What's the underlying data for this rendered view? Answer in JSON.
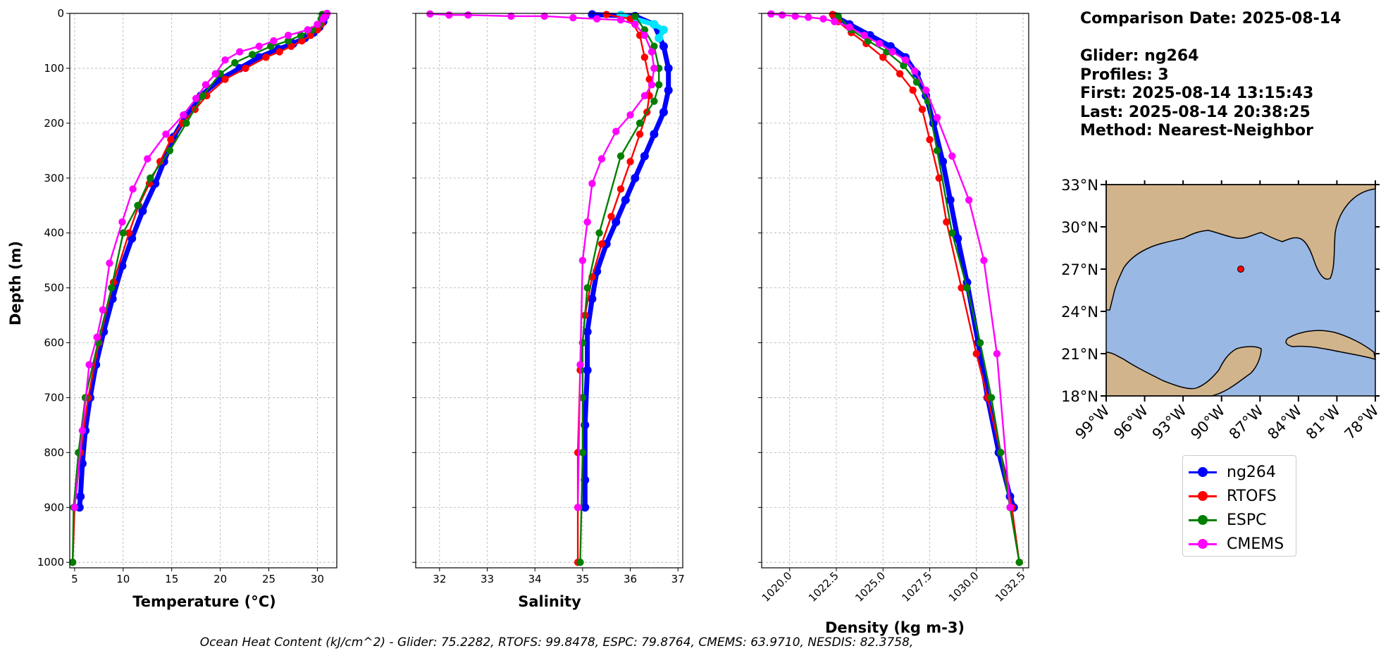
{
  "info": {
    "comparison_date": "Comparison Date: 2025-08-14",
    "glider": "Glider: ng264",
    "profiles": "Profiles: 3",
    "first": "First: 2025-08-14 13:15:43",
    "last": "Last: 2025-08-14 20:38:25",
    "method": "Method: Nearest-Neighbor"
  },
  "footer": "Ocean Heat Content (kJ/cm^2) - Glider: 75.2282,  RTOFS: 99.8478,  ESPC: 79.8764,  CMEMS: 63.9710,  NESDIS: 82.3758,",
  "colors": {
    "ng264": "#0000ff",
    "ng264_alt": "#00e5ff",
    "RTOFS": "#ff0000",
    "ESPC": "#007f00",
    "CMEMS": "#ff00ff",
    "land": "#d2b48c",
    "ocean": "#9ab8e4",
    "grid": "#b0b0b0"
  },
  "legend": [
    {
      "name": "ng264",
      "color": "#0000ff"
    },
    {
      "name": "RTOFS",
      "color": "#ff0000"
    },
    {
      "name": "ESPC",
      "color": "#007f00"
    },
    {
      "name": "CMEMS",
      "color": "#ff00ff"
    }
  ],
  "chart_data": [
    {
      "type": "line",
      "xlabel": "Temperature (°C)",
      "ylabel": "Depth (m)",
      "xlim": [
        4.5,
        32
      ],
      "ylim": [
        1010,
        0
      ],
      "xticks": [
        5,
        10,
        15,
        20,
        25,
        30
      ],
      "yticks": [
        0,
        100,
        200,
        300,
        400,
        500,
        600,
        700,
        800,
        900,
        1000
      ],
      "grid": true,
      "series": [
        {
          "name": "ng264",
          "x": [
            30.8,
            30.6,
            30.2,
            29.6,
            28.7,
            27.5,
            26.0,
            24.0,
            22.0,
            20.0,
            18.0,
            16.5,
            15.2,
            14.2,
            13.3,
            12.0,
            10.9,
            9.9,
            8.9,
            8.0,
            7.2,
            6.6,
            6.1,
            5.8,
            5.6,
            5.5
          ],
          "y": [
            5,
            15,
            25,
            35,
            45,
            55,
            65,
            80,
            100,
            120,
            150,
            185,
            225,
            270,
            310,
            360,
            410,
            460,
            520,
            580,
            640,
            700,
            760,
            820,
            880,
            900
          ]
        },
        {
          "name": "RTOFS",
          "x": [
            30.7,
            30.6,
            30.4,
            30.0,
            29.3,
            28.4,
            27.3,
            26.1,
            24.7,
            22.6,
            20.5,
            18.6,
            17.4,
            16.1,
            14.9,
            13.8,
            12.7,
            11.6,
            10.6,
            9.0,
            7.5,
            6.4,
            5.6,
            5.0,
            4.8
          ],
          "y": [
            2,
            10,
            20,
            30,
            40,
            50,
            60,
            70,
            80,
            100,
            120,
            150,
            175,
            200,
            230,
            270,
            310,
            350,
            400,
            490,
            600,
            700,
            800,
            900,
            1000
          ]
        },
        {
          "name": "ESPC",
          "x": [
            30.5,
            30.4,
            30.2,
            29.5,
            28.3,
            27.0,
            25.2,
            23.3,
            21.5,
            20.0,
            18.2,
            16.5,
            14.8,
            12.8,
            11.5,
            10.0,
            8.8,
            7.4,
            6.1,
            5.4,
            4.9,
            4.8
          ],
          "y": [
            2,
            10,
            20,
            30,
            40,
            50,
            60,
            75,
            90,
            110,
            150,
            200,
            250,
            300,
            350,
            400,
            500,
            600,
            700,
            800,
            900,
            1000
          ]
        },
        {
          "name": "CMEMS",
          "x": [
            31.0,
            30.8,
            30.6,
            30.0,
            29.0,
            27.0,
            25.5,
            24.0,
            22.0,
            20.5,
            19.5,
            18.5,
            17.5,
            16.2,
            14.4,
            12.5,
            11.0,
            9.9,
            8.6,
            7.9,
            7.3,
            6.5,
            5.8,
            5.0
          ],
          "y": [
            0,
            5,
            10,
            20,
            30,
            40,
            50,
            60,
            70,
            85,
            110,
            130,
            155,
            185,
            220,
            265,
            320,
            380,
            455,
            540,
            590,
            640,
            760,
            900
          ]
        }
      ]
    },
    {
      "type": "line",
      "xlabel": "Salinity",
      "xlim": [
        31.5,
        37.1
      ],
      "ylim": [
        1010,
        0
      ],
      "xticks": [
        32,
        33,
        34,
        35,
        36,
        37
      ],
      "grid": true,
      "series": [
        {
          "name": "ng264",
          "x": [
            35.2,
            36.1,
            36.5,
            36.7,
            36.8,
            36.8,
            36.7,
            36.5,
            36.3,
            36.1,
            35.9,
            35.7,
            35.5,
            35.3,
            35.2,
            35.1,
            35.1,
            35.05,
            35.05,
            35.05
          ],
          "y": [
            2,
            5,
            20,
            60,
            100,
            140,
            180,
            220,
            260,
            300,
            340,
            380,
            420,
            470,
            520,
            580,
            650,
            750,
            850,
            900
          ]
        },
        {
          "name": "ng264_alt",
          "x": [
            35.8,
            36.5,
            36.7,
            36.6
          ],
          "y": [
            3,
            20,
            30,
            45
          ]
        },
        {
          "name": "RTOFS",
          "x": [
            35.5,
            36.0,
            36.2,
            36.3,
            36.4,
            36.4,
            36.35,
            36.2,
            36.0,
            35.8,
            35.6,
            35.4,
            35.2,
            35.05,
            34.95,
            34.9,
            34.9,
            34.9
          ],
          "y": [
            2,
            10,
            40,
            80,
            120,
            150,
            180,
            220,
            270,
            320,
            370,
            420,
            480,
            550,
            650,
            800,
            900,
            1000
          ]
        },
        {
          "name": "ESPC",
          "x": [
            36.1,
            36.3,
            36.5,
            36.6,
            36.6,
            36.5,
            36.2,
            35.8,
            35.35,
            35.1,
            35.0,
            35.0,
            35.0,
            34.95
          ],
          "y": [
            5,
            30,
            60,
            100,
            130,
            160,
            200,
            260,
            400,
            500,
            600,
            700,
            800,
            1000
          ]
        },
        {
          "name": "CMEMS",
          "x": [
            31.8,
            32.2,
            32.6,
            33.5,
            34.2,
            34.8,
            35.3,
            35.8,
            36.1,
            36.3,
            36.45,
            36.5,
            36.45,
            36.3,
            36.0,
            35.7,
            35.4,
            35.2,
            35.1,
            35.0,
            34.95,
            34.9
          ],
          "y": [
            1,
            3,
            3,
            5,
            5,
            8,
            10,
            12,
            20,
            40,
            70,
            100,
            130,
            150,
            185,
            215,
            265,
            310,
            380,
            450,
            640,
            900
          ]
        }
      ]
    },
    {
      "type": "line",
      "xlabel": "Density (kg m-3)",
      "xlim": [
        1018.5,
        1032.8
      ],
      "ylim": [
        1010,
        0
      ],
      "xticks": [
        1020.0,
        1022.5,
        1025.0,
        1027.5,
        1030.0,
        1032.5
      ],
      "grid": true,
      "series": [
        {
          "name": "ng264",
          "x": [
            1022.4,
            1023.2,
            1024.3,
            1025.4,
            1026.2,
            1026.8,
            1027.3,
            1027.7,
            1028.2,
            1028.6,
            1029.0,
            1029.5,
            1030.1,
            1030.6,
            1031.2,
            1031.8,
            1032.0
          ],
          "y": [
            5,
            20,
            40,
            60,
            80,
            110,
            150,
            200,
            270,
            340,
            410,
            490,
            600,
            700,
            800,
            880,
            900
          ]
        },
        {
          "name": "RTOFS",
          "x": [
            1022.3,
            1022.6,
            1023.3,
            1024.1,
            1025.0,
            1025.9,
            1026.6,
            1027.1,
            1027.5,
            1028.0,
            1028.4,
            1029.2,
            1030.0,
            1030.6,
            1031.3,
            1031.9,
            1032.3
          ],
          "y": [
            2,
            15,
            35,
            55,
            80,
            110,
            140,
            175,
            230,
            300,
            380,
            500,
            620,
            700,
            800,
            900,
            1000
          ]
        },
        {
          "name": "ESPC",
          "x": [
            1022.6,
            1023.3,
            1024.2,
            1025.2,
            1026.1,
            1026.8,
            1027.4,
            1027.9,
            1028.7,
            1029.5,
            1030.2,
            1030.8,
            1031.3,
            1031.8,
            1032.3
          ],
          "y": [
            5,
            30,
            50,
            70,
            95,
            125,
            160,
            250,
            400,
            500,
            600,
            700,
            800,
            900,
            1000
          ]
        },
        {
          "name": "CMEMS",
          "x": [
            1019.0,
            1019.6,
            1020.3,
            1021.0,
            1021.8,
            1022.4,
            1023.2,
            1024.0,
            1024.8,
            1025.5,
            1026.2,
            1026.7,
            1027.3,
            1027.9,
            1028.7,
            1029.6,
            1030.4,
            1031.1,
            1031.8
          ],
          "y": [
            1,
            3,
            5,
            7,
            10,
            15,
            25,
            40,
            55,
            70,
            85,
            105,
            140,
            190,
            260,
            340,
            450,
            620,
            900
          ]
        }
      ]
    },
    {
      "type": "map",
      "lon_range": [
        -99,
        -78
      ],
      "lat_range": [
        18,
        33
      ],
      "lon_ticks": [
        "99°W",
        "96°W",
        "93°W",
        "90°W",
        "87°W",
        "84°W",
        "81°W",
        "78°W"
      ],
      "lat_ticks": [
        "33°N",
        "30°N",
        "27°N",
        "24°N",
        "21°N",
        "18°N"
      ],
      "marker": {
        "lon": -88.5,
        "lat": 27.0,
        "color": "#ff0000"
      }
    }
  ]
}
